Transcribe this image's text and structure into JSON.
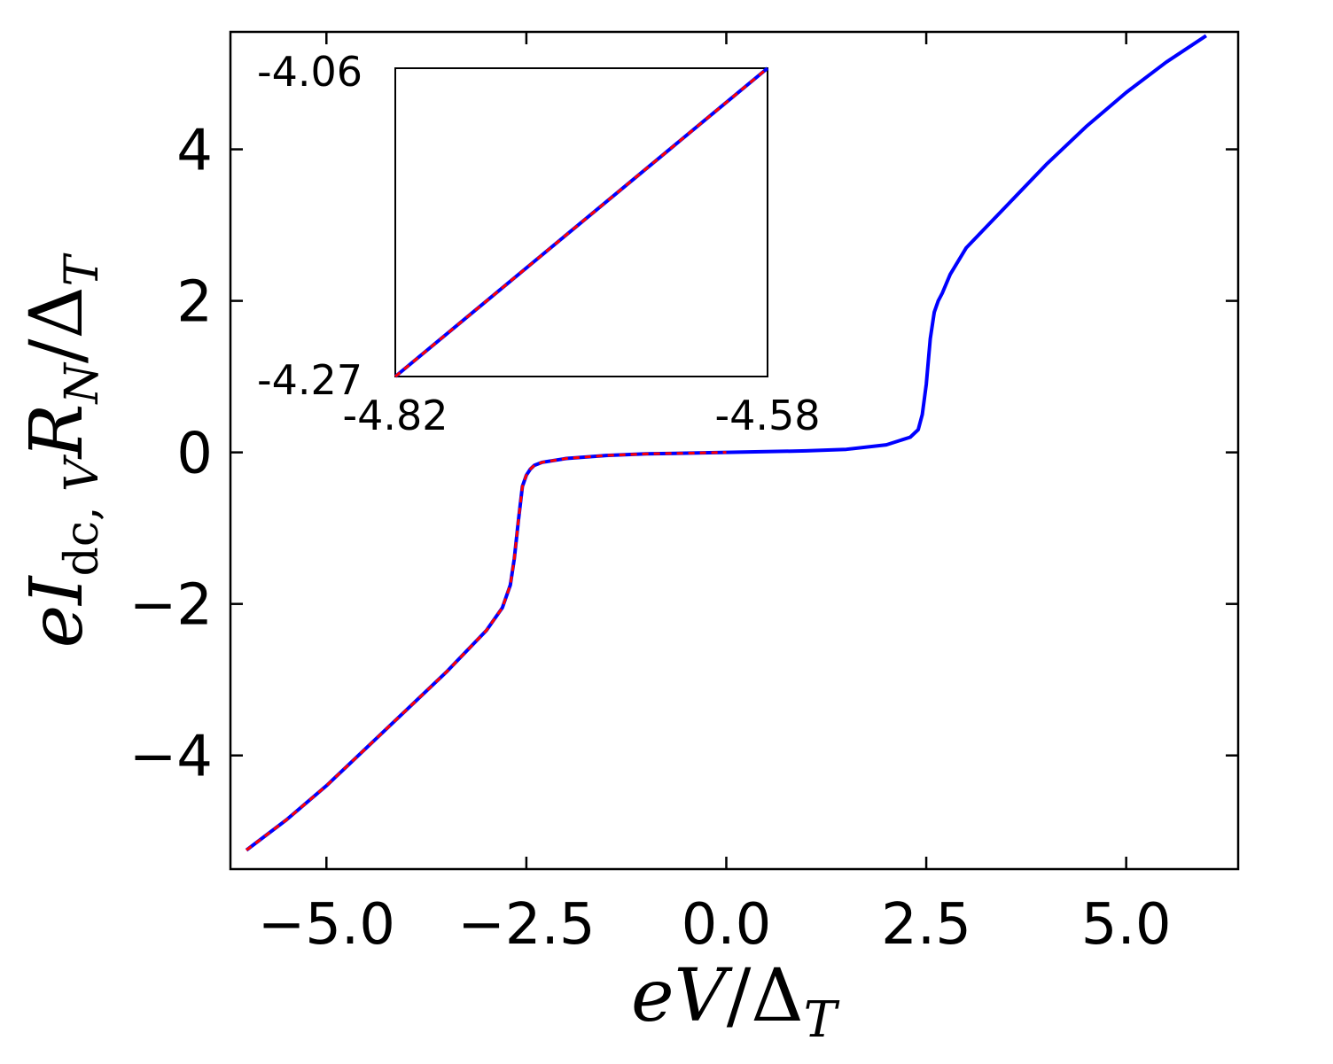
{
  "chart_data": [
    {
      "type": "line",
      "title": "",
      "xlabel": "eV/ΔT",
      "ylabel": "eI dc,V RN/ΔT",
      "xlim": [
        -6.2,
        6.4
      ],
      "ylim": [
        -5.5,
        5.55
      ],
      "xticks": [
        -5.0,
        -2.5,
        0.0,
        2.5,
        5.0
      ],
      "xtick_labels": [
        "−5.0",
        "−2.5",
        "0.0",
        "2.5",
        "5.0"
      ],
      "yticks": [
        -4,
        -2,
        0,
        2,
        4
      ],
      "ytick_labels": [
        "−4",
        "−2",
        "0",
        "2",
        "4"
      ],
      "grid": false,
      "legend": "none",
      "series": [
        {
          "color": "#0000ff",
          "style": "solid",
          "x": [
            -6.0,
            -5.5,
            -5.0,
            -4.5,
            -4.0,
            -3.5,
            -3.0,
            -2.8,
            -2.7,
            -2.65,
            -2.6,
            -2.55,
            -2.5,
            -2.45,
            -2.4,
            -2.3,
            -2.0,
            -1.5,
            -1.0,
            -0.5,
            0.0,
            0.5,
            1.0,
            1.5,
            2.0,
            2.3,
            2.4,
            2.45,
            2.5,
            2.55,
            2.6,
            2.65,
            2.7,
            2.8,
            3.0,
            3.5,
            4.0,
            4.5,
            5.0,
            5.5,
            6.0
          ],
          "y": [
            -5.25,
            -4.85,
            -4.4,
            -3.9,
            -3.4,
            -2.9,
            -2.35,
            -2.05,
            -1.75,
            -1.4,
            -0.9,
            -0.45,
            -0.3,
            -0.22,
            -0.17,
            -0.13,
            -0.08,
            -0.04,
            -0.02,
            -0.01,
            0.0,
            0.01,
            0.02,
            0.04,
            0.1,
            0.2,
            0.3,
            0.5,
            0.9,
            1.5,
            1.85,
            2.0,
            2.1,
            2.35,
            2.7,
            3.25,
            3.8,
            4.3,
            4.75,
            5.15,
            5.5
          ]
        },
        {
          "color": "#ff0000",
          "style": "dashed",
          "x": [
            -6.0,
            -5.5,
            -5.0,
            -4.5,
            -4.0,
            -3.5,
            -3.0,
            -2.8,
            -2.7,
            -2.65,
            -2.6,
            -2.55,
            -2.5,
            -2.45,
            -2.4,
            -2.3,
            -2.0,
            -1.5,
            -1.0,
            -0.5,
            0.0
          ],
          "y": [
            -5.25,
            -4.85,
            -4.4,
            -3.9,
            -3.4,
            -2.9,
            -2.35,
            -2.05,
            -1.75,
            -1.4,
            -0.9,
            -0.45,
            -0.3,
            -0.22,
            -0.17,
            -0.13,
            -0.08,
            -0.04,
            -0.02,
            -0.01,
            0.0
          ]
        }
      ]
    },
    {
      "type": "line",
      "title": "",
      "inset": true,
      "xlim": [
        -4.82,
        -4.58
      ],
      "ylim": [
        -4.27,
        -4.06
      ],
      "xtick_labels": [
        "-4.82",
        "-4.58"
      ],
      "ytick_labels": [
        "-4.06",
        "-4.27"
      ],
      "series": [
        {
          "color": "#0000ff",
          "style": "solid",
          "x": [
            -4.82,
            -4.58
          ],
          "y": [
            -4.27,
            -4.06
          ]
        },
        {
          "color": "#ff0000",
          "style": "dashed",
          "x": [
            -4.82,
            -4.58
          ],
          "y": [
            -4.27,
            -4.06
          ]
        }
      ]
    }
  ]
}
